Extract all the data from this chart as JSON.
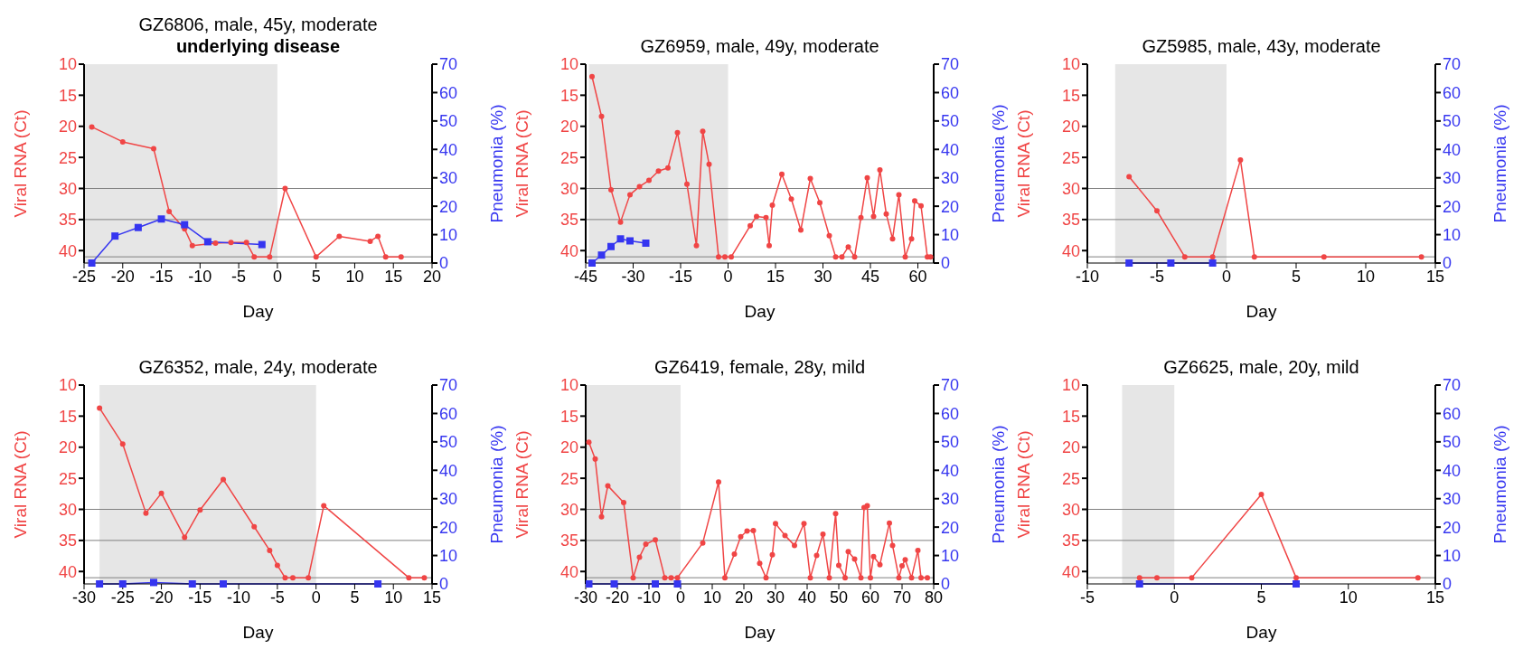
{
  "chart_data": [
    {
      "type": "line",
      "title": "GZ6806, male, 45y, moderate",
      "subtitle": "underlying disease",
      "xlabel": "Day",
      "ylabel": "Viral RNA (Ct)",
      "y2label": "Pneumonia (%)",
      "xlim": [
        -25,
        20
      ],
      "xticks": [
        -25,
        -20,
        -15,
        -10,
        -5,
        0,
        5,
        10,
        15,
        20
      ],
      "ylim": [
        42,
        10
      ],
      "yticks": [
        10,
        15,
        20,
        25,
        30,
        35,
        40
      ],
      "y2lim": [
        0,
        70
      ],
      "y2ticks": [
        0,
        10,
        20,
        30,
        40,
        50,
        60,
        70
      ],
      "line_style": "solid",
      "series": [
        {
          "color": "#f04545",
          "marker": "circle",
          "x": [
            -24,
            -20,
            -16,
            -14,
            -12,
            -11,
            -8,
            -6,
            -4,
            -3,
            -1,
            1,
            5,
            8,
            12,
            13,
            14,
            16
          ],
          "values": [
            20.1,
            22.5,
            23.6,
            33.7,
            36.5,
            39.2,
            38.8,
            38.7,
            38.7,
            41,
            41,
            30,
            41,
            37.7,
            38.5,
            37.7,
            41,
            41
          ]
        },
        {
          "color": "#3535f0",
          "marker": "square",
          "axis": "y2",
          "x": [
            -24,
            -21,
            -18,
            -15,
            -12,
            -9,
            -2
          ],
          "values": [
            0,
            9.5,
            12.5,
            15.5,
            13.5,
            7.5,
            6.5
          ]
        }
      ],
      "bands": [
        {
          "axis": "x",
          "from": -25,
          "to": 0,
          "color": "#e6e6e6"
        }
      ],
      "ref_lines": [
        {
          "axis": "y",
          "value": 30,
          "color": "#808080"
        },
        {
          "axis": "y",
          "value": 35,
          "color": "#808080"
        },
        {
          "axis": "y",
          "value": 41,
          "color": "#808080"
        }
      ]
    },
    {
      "type": "line",
      "title": "GZ6959, male, 49y, moderate",
      "xlabel": "Day",
      "ylabel": "Viral RNA (Ct)",
      "y2label": "Pneumonia (%)",
      "xlim": [
        -45,
        65
      ],
      "xticks": [
        -45,
        -30,
        -15,
        0,
        15,
        30,
        45,
        60
      ],
      "ylim": [
        42,
        10
      ],
      "yticks": [
        10,
        15,
        20,
        25,
        30,
        35,
        40
      ],
      "y2lim": [
        0,
        70
      ],
      "y2ticks": [
        0,
        10,
        20,
        30,
        40,
        50,
        60,
        70
      ],
      "line_style": "solid",
      "series": [
        {
          "color": "#f04545",
          "marker": "circle",
          "x": [
            -43,
            -40,
            -37,
            -34,
            -31,
            -28,
            -25,
            -22,
            -19,
            -16,
            -13,
            -10,
            -8,
            -6,
            -3,
            -1,
            1,
            7,
            9,
            12,
            13,
            14,
            17,
            20,
            23,
            26,
            29,
            32,
            34,
            36,
            38,
            40,
            42,
            44,
            46,
            48,
            50,
            52,
            54,
            56,
            58,
            59,
            61,
            63,
            64
          ],
          "values": [
            12.0,
            18.4,
            30.2,
            35.4,
            31,
            29.7,
            28.7,
            27.2,
            26.7,
            21,
            29.3,
            39.2,
            20.8,
            26.1,
            41,
            41,
            41,
            36,
            34.5,
            34.7,
            39.2,
            32.7,
            27.7,
            31.7,
            36.7,
            28.4,
            32.3,
            37.6,
            41,
            41,
            39.4,
            41,
            34.7,
            28.3,
            34.5,
            27,
            34.1,
            38.1,
            31,
            41,
            38.1,
            32,
            32.8,
            41,
            41
          ]
        },
        {
          "color": "#3535f0",
          "marker": "square",
          "axis": "y2",
          "x": [
            -43,
            -40,
            -37,
            -34,
            -31,
            -26
          ],
          "values": [
            0,
            2.8,
            5.8,
            8.5,
            7.8,
            7
          ]
        }
      ],
      "bands": [
        {
          "axis": "x",
          "from": -44,
          "to": 0,
          "color": "#e6e6e6"
        }
      ],
      "ref_lines": [
        {
          "axis": "y",
          "value": 30,
          "color": "#808080"
        },
        {
          "axis": "y",
          "value": 35,
          "color": "#808080"
        },
        {
          "axis": "y",
          "value": 41,
          "color": "#808080"
        }
      ]
    },
    {
      "type": "line",
      "title": "GZ5985, male, 43y, moderate",
      "xlabel": "Day",
      "ylabel": "Viral RNA (Ct)",
      "y2label": "Pneumonia (%)",
      "xlim": [
        -10,
        15
      ],
      "xticks": [
        -10,
        -5,
        0,
        5,
        10,
        15
      ],
      "ylim": [
        42,
        10
      ],
      "yticks": [
        10,
        15,
        20,
        25,
        30,
        35,
        40
      ],
      "y2lim": [
        0,
        70
      ],
      "y2ticks": [
        0,
        10,
        20,
        30,
        40,
        50,
        60,
        70
      ],
      "line_style": "solid",
      "series": [
        {
          "color": "#f04545",
          "marker": "circle",
          "x": [
            -7,
            -5,
            -3,
            -1,
            1,
            2,
            7,
            14
          ],
          "values": [
            28.1,
            33.6,
            41,
            41,
            25.4,
            41,
            41,
            41
          ]
        },
        {
          "color": "#3535f0",
          "marker": "square",
          "axis": "y2",
          "x": [
            -7,
            -4,
            -1
          ],
          "values": [
            0,
            0,
            0
          ]
        }
      ],
      "bands": [
        {
          "axis": "x",
          "from": -8,
          "to": 0,
          "color": "#e6e6e6"
        }
      ],
      "ref_lines": [
        {
          "axis": "y",
          "value": 30,
          "color": "#808080"
        },
        {
          "axis": "y",
          "value": 35,
          "color": "#808080"
        },
        {
          "axis": "y",
          "value": 41,
          "color": "#808080"
        }
      ]
    },
    {
      "type": "line",
      "title": "GZ6352, male, 24y, moderate",
      "xlabel": "Day",
      "ylabel": "Viral RNA (Ct)",
      "y2label": "Pneumonia (%)",
      "xlim": [
        -30,
        15
      ],
      "xticks": [
        -30,
        -25,
        -20,
        -15,
        -10,
        -5,
        0,
        5,
        10,
        15
      ],
      "ylim": [
        42,
        10
      ],
      "yticks": [
        10,
        15,
        20,
        25,
        30,
        35,
        40
      ],
      "y2lim": [
        0,
        70
      ],
      "y2ticks": [
        0,
        10,
        20,
        30,
        40,
        50,
        60,
        70
      ],
      "line_style": "solid",
      "series": [
        {
          "color": "#f04545",
          "marker": "circle",
          "x": [
            -28,
            -25,
            -22,
            -20,
            -17,
            -15,
            -12,
            -8,
            -6,
            -5,
            -4,
            -3,
            -1,
            1,
            12,
            14
          ],
          "values": [
            13.7,
            19.5,
            30.6,
            27.4,
            34.5,
            30.1,
            25.2,
            32.8,
            36.6,
            39,
            41,
            41,
            41,
            29.4,
            41,
            41
          ]
        },
        {
          "color": "#3535f0",
          "marker": "square",
          "axis": "y2",
          "x": [
            -28,
            -25,
            -21,
            -16,
            -12,
            8
          ],
          "values": [
            0,
            0,
            0.5,
            0,
            0,
            0
          ]
        }
      ],
      "bands": [
        {
          "axis": "x",
          "from": -28,
          "to": 0,
          "color": "#e6e6e6"
        }
      ],
      "ref_lines": [
        {
          "axis": "y",
          "value": 30,
          "color": "#808080"
        },
        {
          "axis": "y",
          "value": 35,
          "color": "#808080"
        },
        {
          "axis": "y",
          "value": 41,
          "color": "#808080"
        }
      ]
    },
    {
      "type": "line",
      "title": "GZ6419, female, 28y, mild",
      "xlabel": "Day",
      "ylabel": "Viral RNA (Ct)",
      "y2label": "Pneumonia (%)",
      "xlim": [
        -30,
        80
      ],
      "xticks": [
        -30,
        -20,
        -10,
        0,
        10,
        20,
        30,
        40,
        50,
        60,
        70,
        80
      ],
      "ylim": [
        42,
        10
      ],
      "yticks": [
        10,
        15,
        20,
        25,
        30,
        35,
        40
      ],
      "y2lim": [
        0,
        70
      ],
      "y2ticks": [
        0,
        10,
        20,
        30,
        40,
        50,
        60,
        70
      ],
      "line_style": "solid",
      "series": [
        {
          "color": "#f04545",
          "marker": "circle",
          "x": [
            -29,
            -27,
            -25,
            -23,
            -18,
            -15,
            -13,
            -11,
            -8,
            -5,
            -3,
            -1,
            7,
            12,
            14,
            17,
            19,
            21,
            23,
            25,
            27,
            29,
            30,
            33,
            36,
            39,
            41,
            43,
            45,
            47,
            49,
            50,
            52,
            53,
            55,
            57,
            58,
            59,
            60,
            61,
            63,
            66,
            67,
            69,
            70,
            71,
            73,
            75,
            76,
            78
          ],
          "values": [
            19.2,
            21.9,
            31.2,
            26.2,
            28.9,
            41,
            37.7,
            35.6,
            34.9,
            41,
            41,
            41,
            35.4,
            25.6,
            41,
            37.2,
            34.4,
            33.5,
            33.4,
            38.7,
            41,
            37.3,
            32.3,
            34.2,
            35.8,
            32.3,
            41,
            37.4,
            34,
            41,
            30.7,
            39,
            41,
            36.8,
            38,
            41,
            29.7,
            29.4,
            41,
            37.6,
            38.9,
            32.2,
            35.8,
            41,
            39.1,
            38.1,
            41,
            36.6,
            41,
            41
          ]
        },
        {
          "color": "#3535f0",
          "marker": "square",
          "axis": "y2",
          "x": [
            -29,
            -21,
            -8,
            -1
          ],
          "values": [
            0,
            0,
            0,
            0
          ]
        }
      ],
      "bands": [
        {
          "axis": "x",
          "from": -30,
          "to": 0,
          "color": "#e6e6e6"
        }
      ],
      "ref_lines": [
        {
          "axis": "y",
          "value": 30,
          "color": "#808080"
        },
        {
          "axis": "y",
          "value": 35,
          "color": "#808080"
        },
        {
          "axis": "y",
          "value": 41,
          "color": "#808080"
        }
      ]
    },
    {
      "type": "line",
      "title": "GZ6625, male, 20y, mild",
      "xlabel": "Day",
      "ylabel": "Viral RNA (Ct)",
      "y2label": "Pneumonia (%)",
      "xlim": [
        -5,
        15
      ],
      "xticks": [
        -5,
        0,
        5,
        10,
        15
      ],
      "ylim": [
        42,
        10
      ],
      "yticks": [
        10,
        15,
        20,
        25,
        30,
        35,
        40
      ],
      "y2lim": [
        0,
        70
      ],
      "y2ticks": [
        0,
        10,
        20,
        30,
        40,
        50,
        60,
        70
      ],
      "line_style": "solid",
      "series": [
        {
          "color": "#f04545",
          "marker": "circle",
          "x": [
            -2,
            -1,
            1,
            5,
            7,
            14
          ],
          "values": [
            41,
            41,
            41,
            27.6,
            41,
            41
          ]
        },
        {
          "color": "#3535f0",
          "marker": "square",
          "axis": "y2",
          "x": [
            -2,
            7
          ],
          "values": [
            0,
            0
          ]
        }
      ],
      "bands": [
        {
          "axis": "x",
          "from": -3,
          "to": 0,
          "color": "#e6e6e6"
        }
      ],
      "ref_lines": [
        {
          "axis": "y",
          "value": 30,
          "color": "#808080"
        },
        {
          "axis": "y",
          "value": 35,
          "color": "#808080"
        },
        {
          "axis": "y",
          "value": 41,
          "color": "#808080"
        }
      ]
    }
  ]
}
